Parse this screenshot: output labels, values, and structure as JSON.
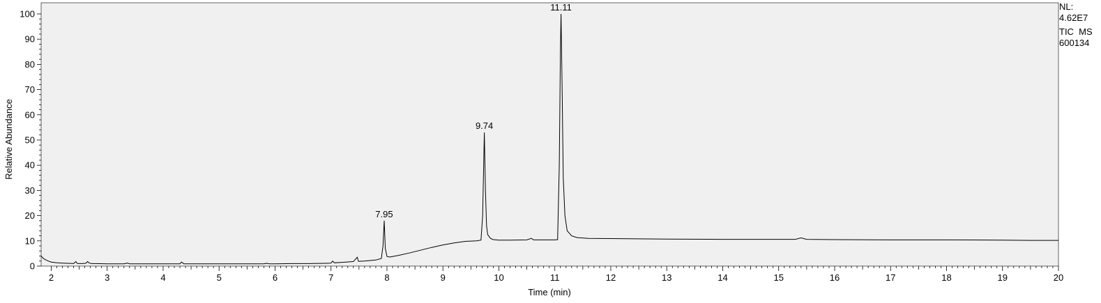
{
  "chart_data": {
    "type": "line",
    "title": "",
    "xlabel": "Time (min)",
    "ylabel": "Relative Abundance",
    "xlim": [
      1.82,
      20
    ],
    "ylim": [
      0,
      105
    ],
    "x_ticks": [
      2,
      3,
      4,
      5,
      6,
      7,
      8,
      9,
      10,
      11,
      12,
      13,
      14,
      15,
      16,
      17,
      18,
      19,
      20
    ],
    "y_ticks": [
      0,
      10,
      20,
      30,
      40,
      50,
      60,
      70,
      80,
      90,
      100
    ],
    "background": "#f0f0f0",
    "line_color": "#000000",
    "grid": false,
    "peaks": [
      {
        "rt": 7.95,
        "label": "7.95",
        "height": 18
      },
      {
        "rt": 9.74,
        "label": "9.74",
        "height": 53
      },
      {
        "rt": 11.11,
        "label": "11.11",
        "height": 100
      }
    ],
    "series": [
      {
        "x": [
          1.82,
          1.84,
          1.86,
          1.9,
          1.95,
          2.0,
          2.1,
          2.2,
          2.3,
          2.4,
          2.44,
          2.46,
          2.48,
          2.55,
          2.62,
          2.65,
          2.68,
          2.72,
          2.8,
          3.0,
          3.3,
          3.36,
          3.4,
          3.6,
          3.9,
          4.2,
          4.3,
          4.33,
          4.37,
          4.5,
          4.8,
          5.2,
          5.6,
          5.8,
          5.85,
          5.9,
          6.0,
          6.3,
          6.6,
          6.9,
          7.0,
          7.03,
          7.06,
          7.2,
          7.4,
          7.47,
          7.49,
          7.51,
          7.6,
          7.8,
          7.9,
          7.93,
          7.95,
          7.97,
          8.0,
          8.05,
          8.1,
          8.2,
          8.4,
          8.6,
          8.8,
          9.0,
          9.2,
          9.4,
          9.6,
          9.68,
          9.71,
          9.73,
          9.74,
          9.76,
          9.78,
          9.8,
          9.85,
          9.9,
          10.0,
          10.2,
          10.5,
          10.58,
          10.62,
          10.7,
          10.9,
          11.0,
          11.05,
          11.08,
          11.1,
          11.11,
          11.13,
          11.15,
          11.18,
          11.22,
          11.3,
          11.4,
          11.6,
          12.0,
          13.0,
          14.0,
          14.5,
          15.0,
          15.3,
          15.4,
          15.5,
          16.0,
          17.0,
          18.0,
          19.0,
          19.5,
          20.0
        ],
        "y": [
          4,
          3.5,
          3.0,
          2.5,
          2.0,
          1.6,
          1.3,
          1.2,
          1.1,
          1.0,
          1.8,
          1.1,
          1.0,
          1.0,
          1.1,
          1.8,
          1.2,
          1.0,
          1.0,
          0.9,
          0.9,
          1.2,
          0.9,
          0.9,
          0.9,
          0.9,
          0.9,
          1.6,
          0.9,
          0.9,
          0.9,
          0.9,
          0.9,
          0.9,
          1.1,
          0.9,
          0.9,
          1.0,
          1.0,
          1.1,
          1.2,
          2.0,
          1.3,
          1.5,
          1.8,
          3.5,
          1.9,
          1.9,
          2.0,
          2.4,
          3.0,
          8.0,
          18,
          7.0,
          3.8,
          3.6,
          3.8,
          4.2,
          5.2,
          6.3,
          7.4,
          8.4,
          9.2,
          9.8,
          10.0,
          10.3,
          20,
          42,
          53,
          30,
          16,
          12.5,
          11,
          10.5,
          10.3,
          10.3,
          10.4,
          11.0,
          10.4,
          10.4,
          10.4,
          10.4,
          10.5,
          40,
          85,
          100,
          70,
          35,
          20,
          14,
          12,
          11.3,
          11.0,
          10.9,
          10.7,
          10.6,
          10.6,
          10.6,
          10.6,
          11.2,
          10.6,
          10.5,
          10.4,
          10.4,
          10.3,
          10.2,
          10.2
        ]
      }
    ]
  },
  "side_note": {
    "line1": "NL:",
    "line2": "4.62E7",
    "line3": "TIC  MS",
    "line4": "600134"
  }
}
